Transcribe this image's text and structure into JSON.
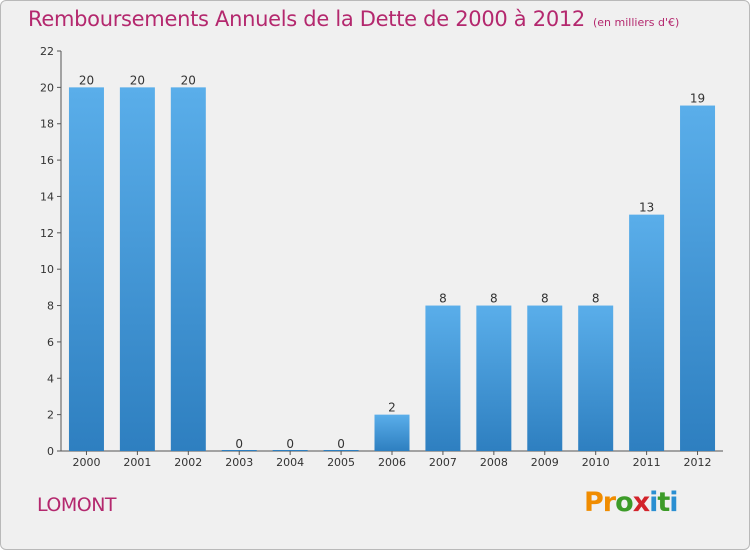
{
  "header": {
    "title": "Remboursements Annuels de la Dette de 2000 à 2012",
    "unit": "(en milliers d'€)"
  },
  "footer": {
    "commune": "LOMONT",
    "brand": {
      "letters": [
        "P",
        "r",
        "o",
        "x",
        "i",
        "t",
        "i"
      ],
      "colors": [
        "#f08c00",
        "#f08c00",
        "#3c9b28",
        "#d2232a",
        "#2a8fd2",
        "#3c9b28",
        "#2a8fd2"
      ]
    }
  },
  "chart_data": {
    "type": "bar",
    "categories": [
      "2000",
      "2001",
      "2002",
      "2003",
      "2004",
      "2005",
      "2006",
      "2007",
      "2008",
      "2009",
      "2010",
      "2011",
      "2012"
    ],
    "values": [
      20,
      20,
      20,
      0,
      0,
      0,
      2,
      8,
      8,
      8,
      8,
      13,
      19
    ],
    "title": "Remboursements Annuels de la Dette de 2000 à 2012",
    "unit": "(en milliers d'€)",
    "ylim": [
      0,
      22
    ],
    "yticks": [
      0,
      2,
      4,
      6,
      8,
      10,
      12,
      14,
      16,
      18,
      20,
      22
    ],
    "grid": false,
    "bar_color_top": "#5aaeea",
    "bar_color_bottom": "#2e7fc0"
  }
}
